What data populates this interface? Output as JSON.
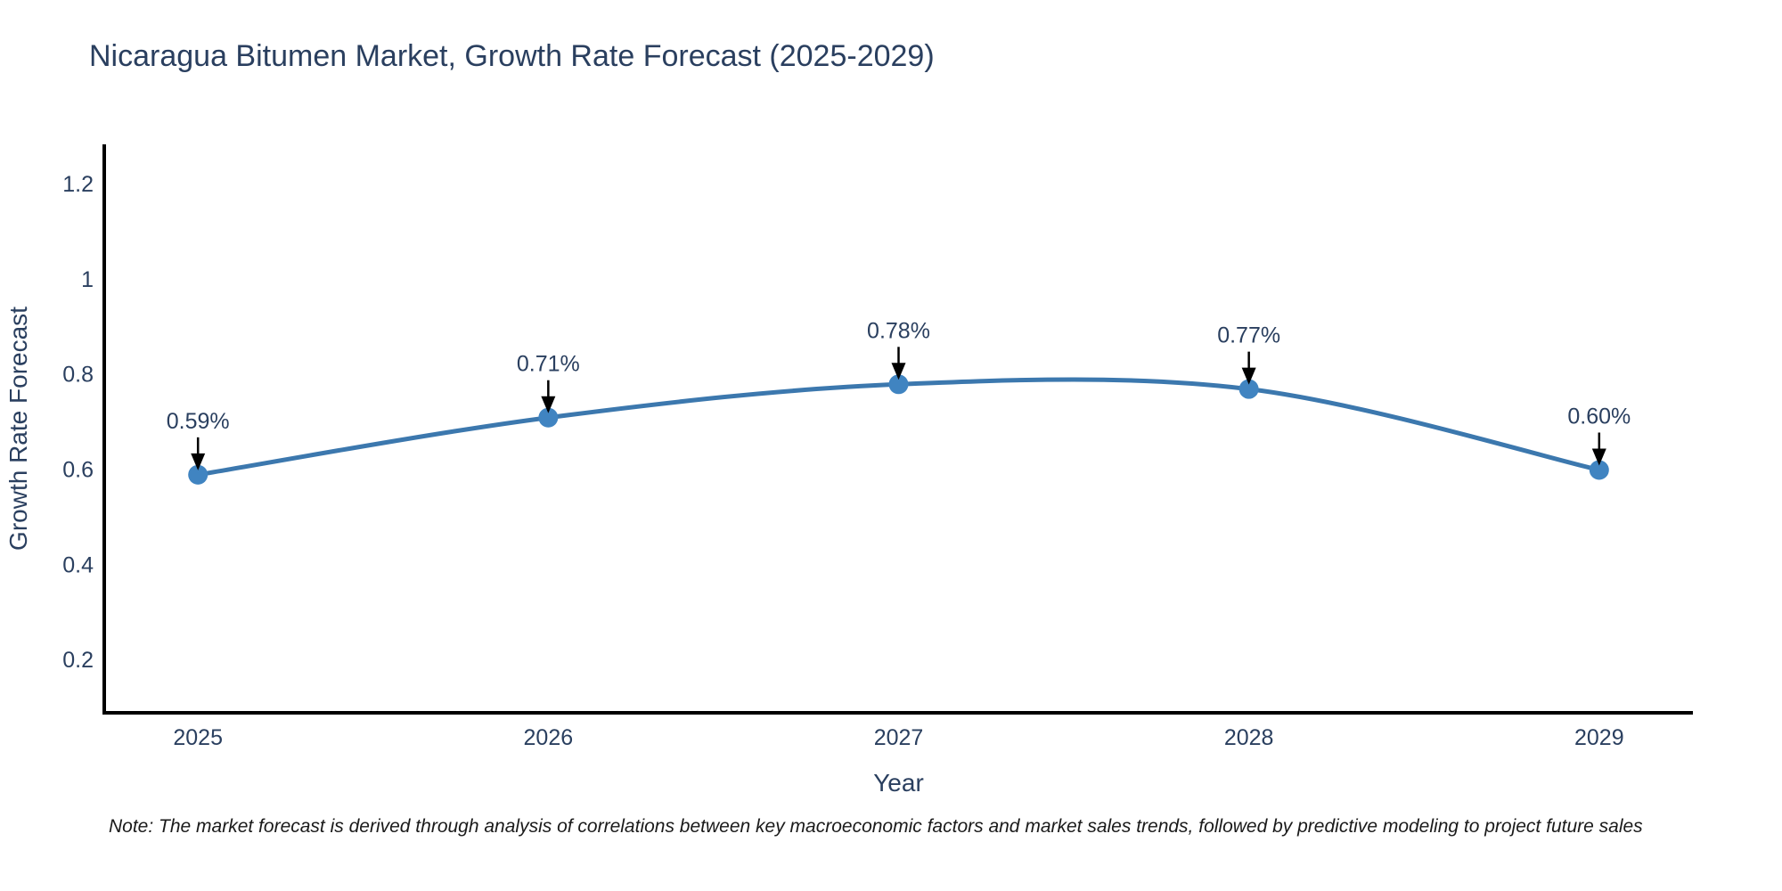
{
  "title": "Nicaragua Bitumen Market, Growth Rate Forecast (2025-2029)",
  "note": "Note: The market forecast is derived through analysis of correlations between key macroeconomic factors and market sales trends, followed by predictive modeling to project future sales",
  "chart_data": {
    "type": "line",
    "line_shape": "spline",
    "x": [
      "2025",
      "2026",
      "2027",
      "2028",
      "2029"
    ],
    "values": [
      0.59,
      0.71,
      0.78,
      0.77,
      0.6
    ],
    "point_labels": [
      "0.59%",
      "0.71%",
      "0.78%",
      "0.77%",
      "0.60%"
    ],
    "title": "Nicaragua Bitumen Market, Growth Rate Forecast (2025-2029)",
    "xlabel": "Year",
    "ylabel": "Growth Rate Forecast",
    "yticks": [
      0.2,
      0.4,
      0.6,
      0.8,
      1,
      1.2
    ],
    "ytick_labels": [
      "0.2",
      "0.4",
      "0.6",
      "0.8",
      "1",
      "1.2"
    ],
    "ylim": [
      0.09,
      1.284
    ],
    "grid": false,
    "legend": "none",
    "colors": {
      "line": "#3c78ae",
      "marker": "#4084c1",
      "axis": "#000000",
      "tick_text": "#2a3f5f",
      "axis_title_text": "#2a3f5f",
      "annotation_text": "#2a3f5f",
      "annotation_arrow": "#000000"
    }
  }
}
